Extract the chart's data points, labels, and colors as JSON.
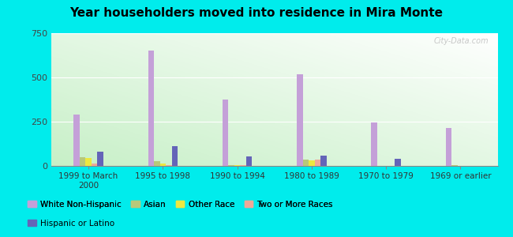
{
  "title": "Year householders moved into residence in Mira Monte",
  "categories": [
    "1999 to March\n2000",
    "1995 to 1998",
    "1990 to 1994",
    "1980 to 1989",
    "1970 to 1979",
    "1969 or earlier"
  ],
  "series": {
    "White Non-Hispanic": [
      290,
      650,
      375,
      520,
      245,
      215
    ],
    "Asian": [
      50,
      25,
      5,
      35,
      0,
      5
    ],
    "Other Race": [
      45,
      15,
      5,
      30,
      0,
      0
    ],
    "Two or More Races": [
      12,
      5,
      5,
      35,
      0,
      0
    ],
    "Hispanic or Latino": [
      80,
      110,
      55,
      60,
      38,
      0
    ]
  },
  "colors": {
    "White Non-Hispanic": "#c4a0d8",
    "Asian": "#b8c87a",
    "Other Race": "#ece840",
    "Two or More Races": "#f0a898",
    "Hispanic or Latino": "#6464b8"
  },
  "ylim": [
    0,
    750
  ],
  "yticks": [
    0,
    250,
    500,
    750
  ],
  "background_color": "#00ecec",
  "watermark": "City-Data.com"
}
